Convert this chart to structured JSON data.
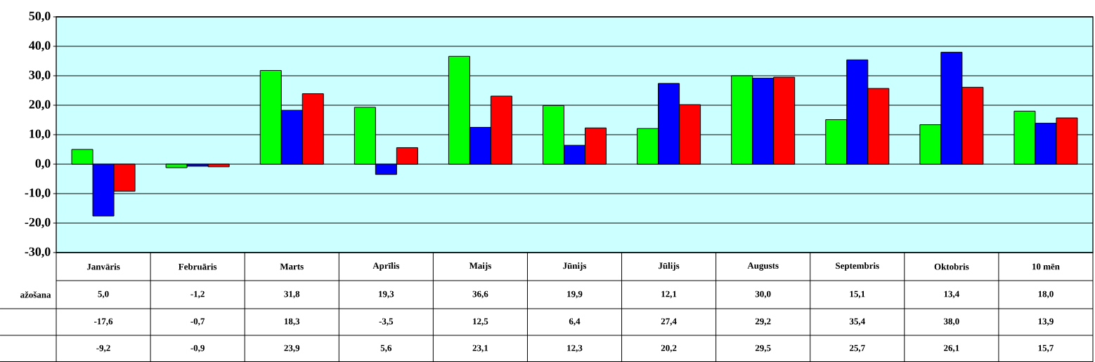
{
  "chart_data": {
    "type": "bar",
    "categories": [
      "Janvāris",
      "Februāris",
      "Marts",
      "Aprīlis",
      "Maijs",
      "Jūnijs",
      "Jūlijs",
      "Augusts",
      "Septembris",
      "Oktobris",
      "10 mēn"
    ],
    "series": [
      {
        "name": "ažošana",
        "color": "#00ff00",
        "values": [
          5.0,
          -1.2,
          31.8,
          19.3,
          36.6,
          19.9,
          12.1,
          30.0,
          15.1,
          13.4,
          18.0
        ],
        "value_labels": [
          "5,0",
          "-1,2",
          "31,8",
          "19,3",
          "36,6",
          "19,9",
          "12,1",
          "30,0",
          "15,1",
          "13,4",
          "18,0"
        ]
      },
      {
        "color": "#0000ff",
        "values": [
          -17.6,
          -0.7,
          18.3,
          -3.5,
          12.5,
          6.4,
          27.4,
          29.2,
          35.4,
          38.0,
          13.9
        ],
        "value_labels": [
          "-17,6",
          "-0,7",
          "18,3",
          "-3,5",
          "12,5",
          "6,4",
          "27,4",
          "29,2",
          "35,4",
          "38,0",
          "13,9"
        ]
      },
      {
        "color": "#ff0000",
        "values": [
          -9.2,
          -0.9,
          23.9,
          5.6,
          23.1,
          12.3,
          20.2,
          29.5,
          25.7,
          26.1,
          15.7
        ],
        "value_labels": [
          "-9,2",
          "-0,9",
          "23,9",
          "5,6",
          "23,1",
          "12,3",
          "20,2",
          "29,5",
          "25,7",
          "26,1",
          "15,7"
        ]
      }
    ],
    "ylim": [
      -30,
      50
    ],
    "yticks": [
      {
        "value": -30,
        "label": "-30,0"
      },
      {
        "value": -20,
        "label": "-20,0"
      },
      {
        "value": -10,
        "label": "-10,0"
      },
      {
        "value": 0,
        "label": "0,0"
      },
      {
        "value": 10,
        "label": "10,0"
      },
      {
        "value": 20,
        "label": "20,0"
      },
      {
        "value": 30,
        "label": "30,0"
      },
      {
        "value": 40,
        "label": "40,0"
      },
      {
        "value": 50,
        "label": "50,0"
      }
    ],
    "grid": "y"
  }
}
